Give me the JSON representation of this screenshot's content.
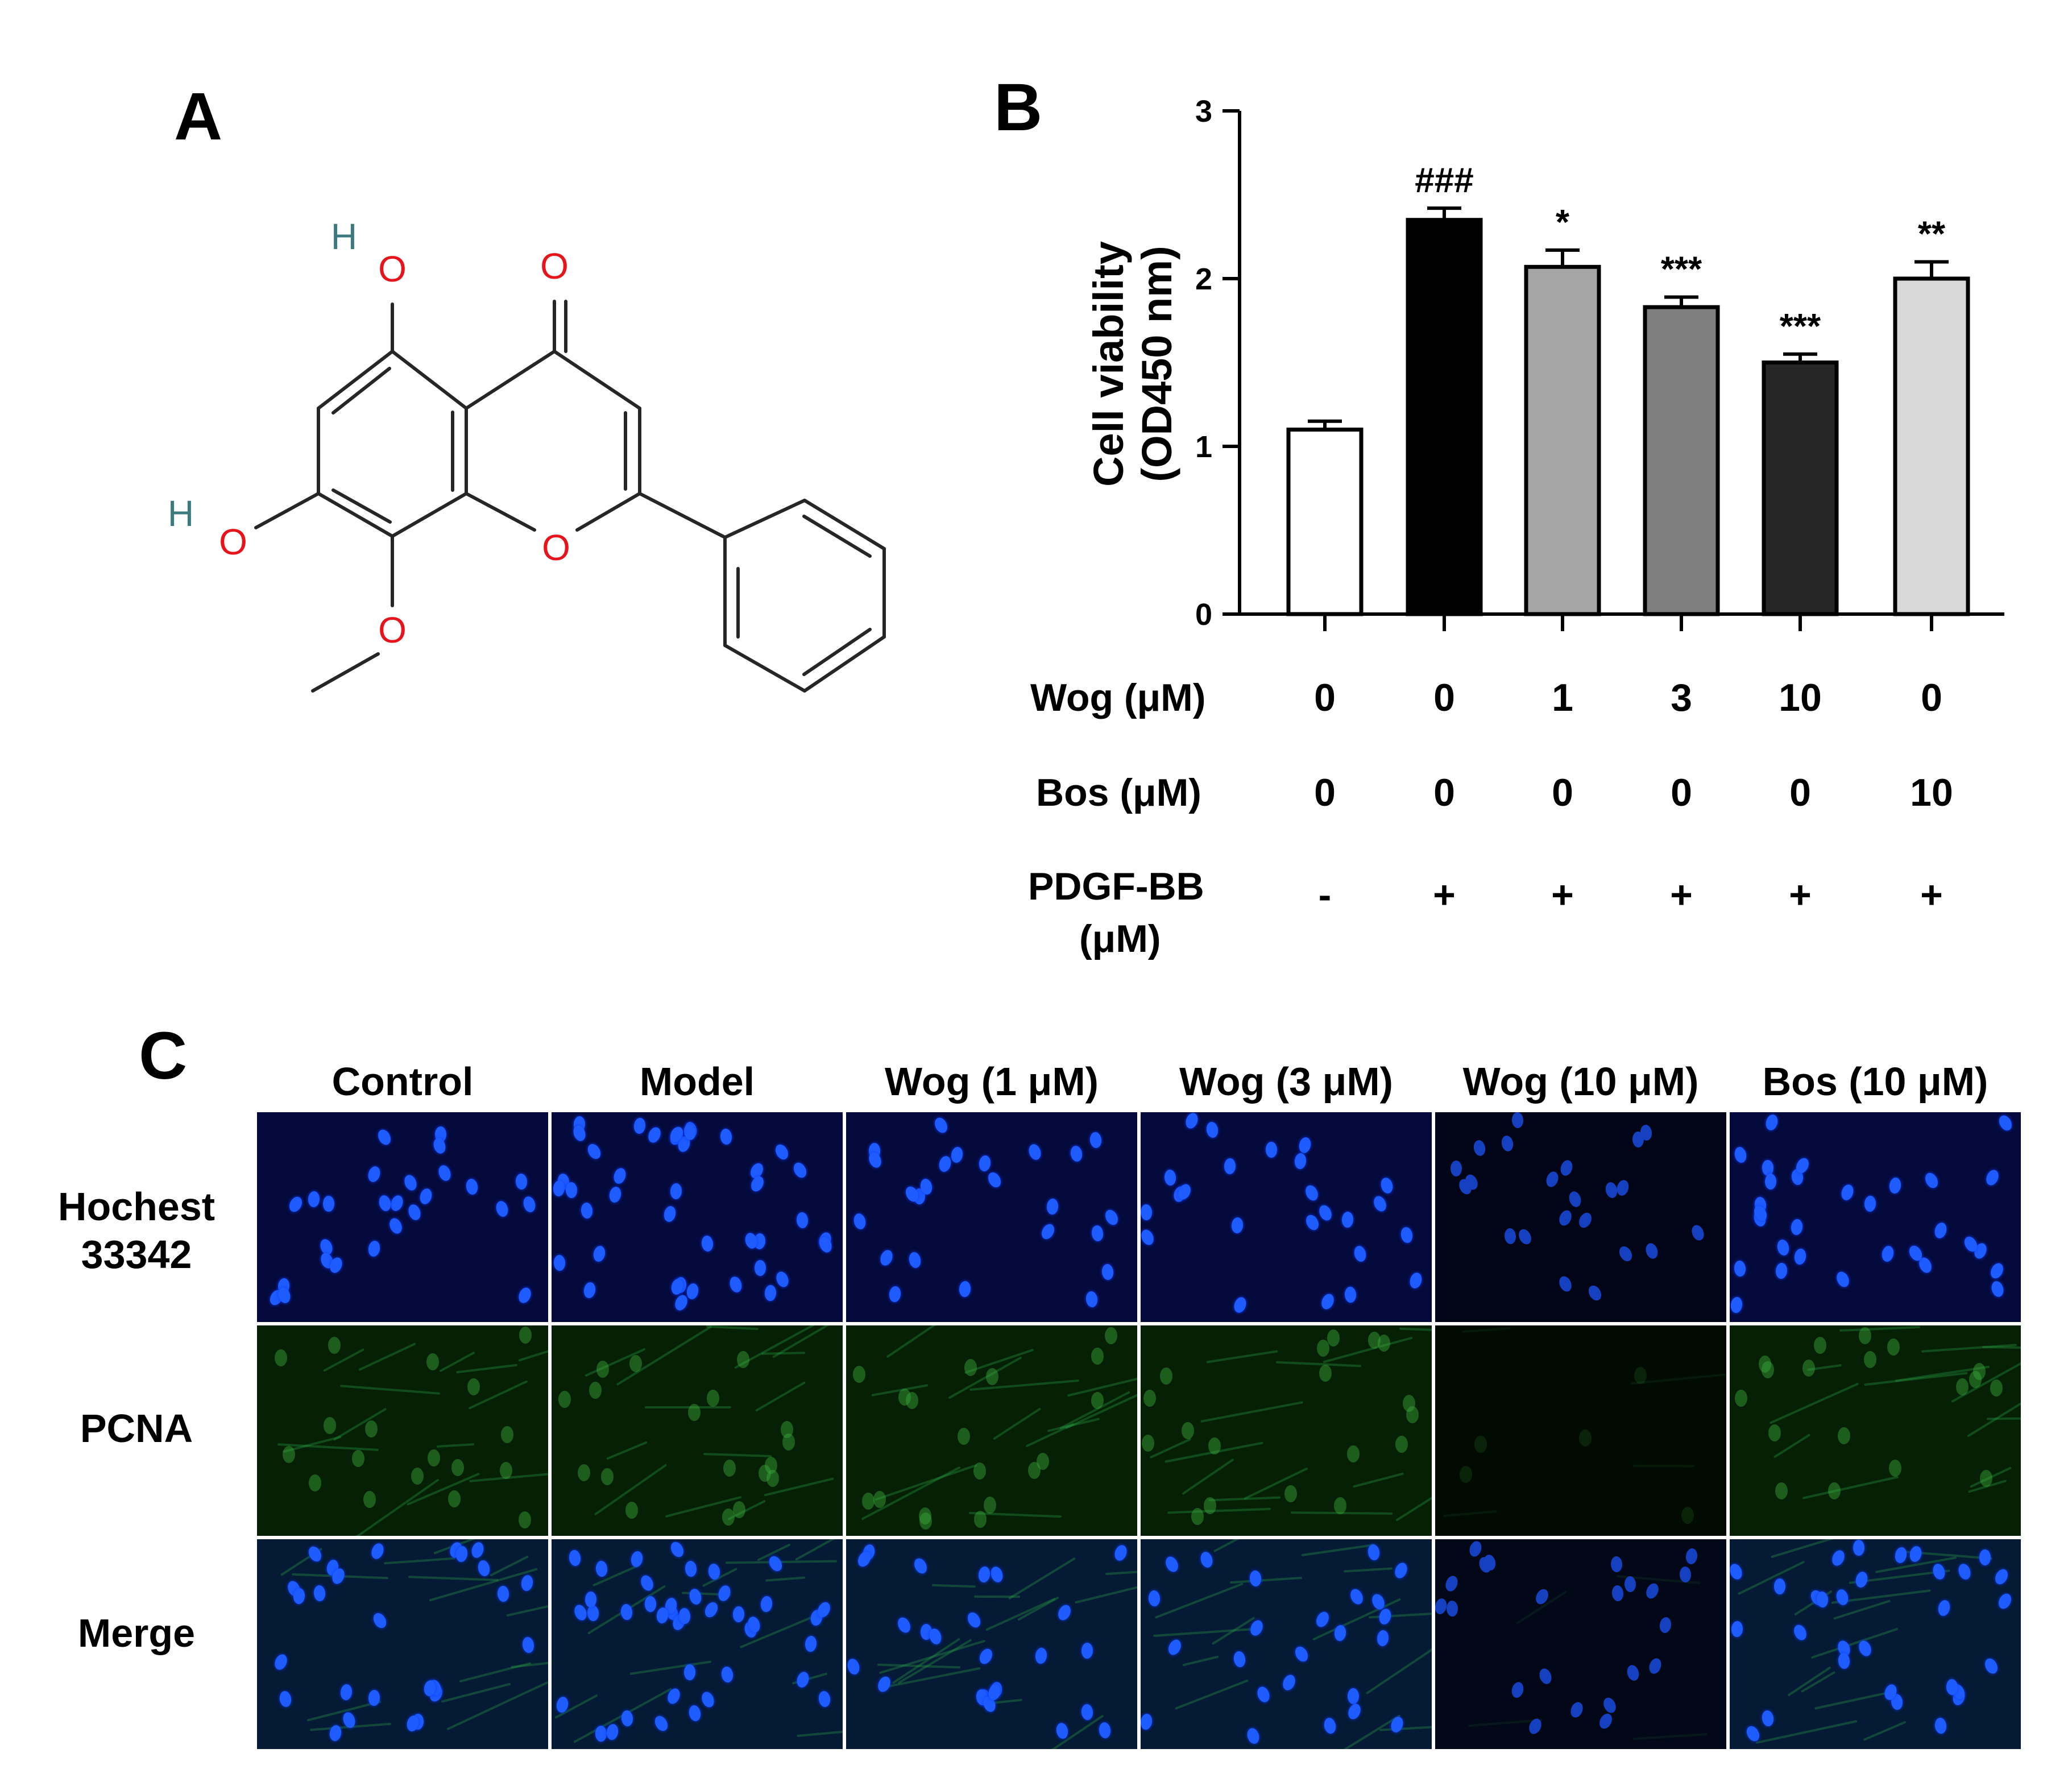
{
  "panels": {
    "a": "A",
    "b": "B",
    "c": "C"
  },
  "structure": {
    "atoms": {
      "o_ketone": "O",
      "o_ring": "O",
      "o_hydroxyl_top": "O",
      "h_top": "H",
      "o_hydroxyl_left": "O",
      "h_left": "H",
      "o_methoxy": "O"
    },
    "colors": {
      "oxygen": "#e8141c",
      "hydrogen": "#3b7a80",
      "bond": "#262626"
    }
  },
  "chart_data": {
    "type": "bar",
    "ylabel_line1": "Cell viability",
    "ylabel_line2": "(OD450 nm)",
    "ylim": [
      0,
      3
    ],
    "yticks": [
      "0",
      "1",
      "2",
      "3"
    ],
    "values": [
      1.1,
      2.35,
      2.07,
      1.83,
      1.5,
      2.0
    ],
    "errors": [
      0.05,
      0.07,
      0.1,
      0.06,
      0.05,
      0.1
    ],
    "significance": [
      "",
      "###",
      "*",
      "***",
      "***",
      "**"
    ],
    "bar_colors": [
      "#ffffff",
      "#000000",
      "#a6a6a6",
      "#7f7f7f",
      "#262626",
      "#d9d9d9"
    ],
    "conditions": [
      {
        "label": "Wog (μM)",
        "values": [
          "0",
          "0",
          "1",
          "3",
          "10",
          "0"
        ]
      },
      {
        "label": "Bos (μM)",
        "values": [
          "0",
          "0",
          "0",
          "0",
          "0",
          "10"
        ]
      },
      {
        "label_line1": "PDGF-BB",
        "label_line2": "(μM)",
        "values": [
          "-",
          "+",
          "+",
          "+",
          "+",
          "+"
        ]
      }
    ]
  },
  "panel_c": {
    "columns": [
      "Control",
      "Model",
      "Wog (1 μM)",
      "Wog (3 μM)",
      "Wog (10 μM)",
      "Bos (10 μM)"
    ],
    "rows": [
      {
        "line1": "Hochest",
        "line2": "33342"
      },
      {
        "line1": "PCNA",
        "line2": ""
      },
      {
        "line1": "Merge",
        "line2": ""
      }
    ],
    "colors": {
      "hoechst": "#1e5cff",
      "pcna": "#2fa84a"
    }
  }
}
